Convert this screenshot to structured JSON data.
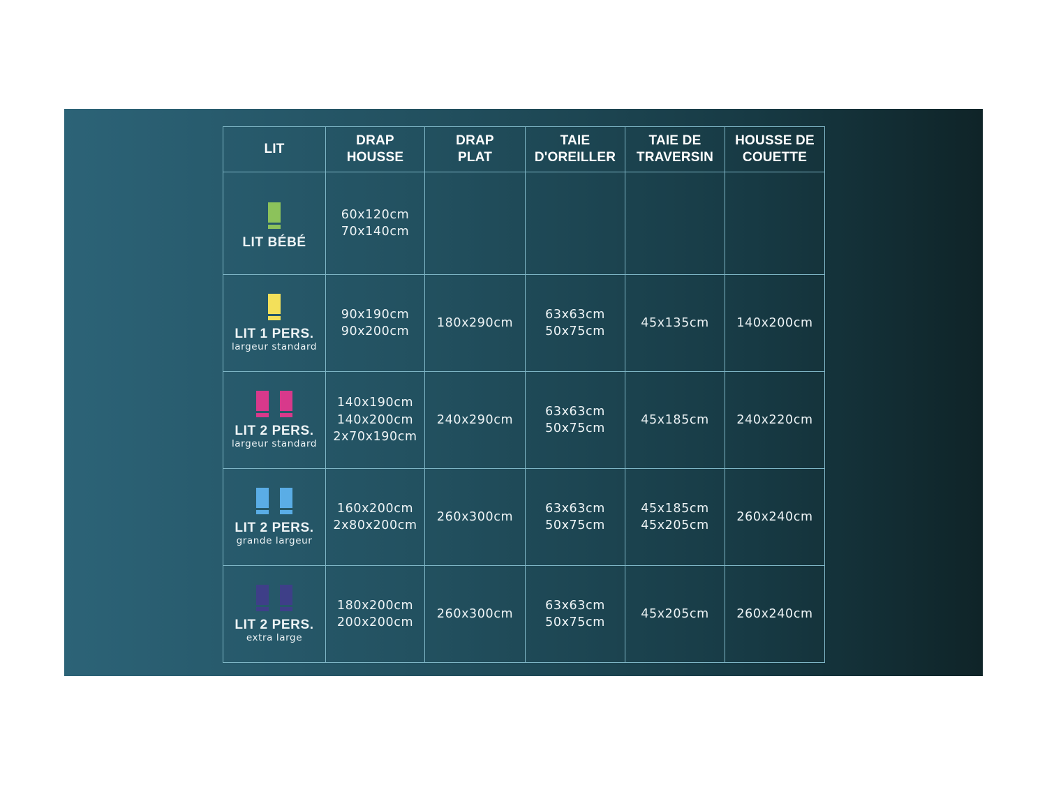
{
  "headers": [
    [
      "LIT"
    ],
    [
      "DRAP",
      "HOUSSE"
    ],
    [
      "DRAP",
      "PLAT"
    ],
    [
      "TAIE",
      "D'OREILLER"
    ],
    [
      "TAIE DE",
      "TRAVERSIN"
    ],
    [
      "HOUSSE DE",
      "COUETTE"
    ]
  ],
  "rows": [
    {
      "name": "LIT BÉBÉ",
      "sub": "",
      "icon_color": "#8cc25b",
      "icon_count": 1,
      "cells": [
        [
          "60x120cm",
          "70x140cm"
        ],
        [],
        [],
        [],
        []
      ]
    },
    {
      "name": "LIT 1 PERS.",
      "sub": "largeur standard",
      "icon_color": "#f3e05a",
      "icon_count": 1,
      "cells": [
        [
          "90x190cm",
          "90x200cm"
        ],
        [
          "180x290cm"
        ],
        [
          "63x63cm",
          "50x75cm"
        ],
        [
          "45x135cm"
        ],
        [
          "140x200cm"
        ]
      ]
    },
    {
      "name": "LIT 2 PERS.",
      "sub": "largeur standard",
      "icon_color": "#d8398b",
      "icon_count": 2,
      "cells": [
        [
          "140x190cm",
          "140x200cm",
          "2x70x190cm"
        ],
        [
          "240x290cm"
        ],
        [
          "63x63cm",
          "50x75cm"
        ],
        [
          "45x185cm"
        ],
        [
          "240x220cm"
        ]
      ]
    },
    {
      "name": "LIT 2 PERS.",
      "sub": "grande largeur",
      "icon_color": "#5aade6",
      "icon_count": 2,
      "cells": [
        [
          "160x200cm",
          "2x80x200cm"
        ],
        [
          "260x300cm"
        ],
        [
          "63x63cm",
          "50x75cm"
        ],
        [
          "45x185cm",
          "45x205cm"
        ],
        [
          "260x240cm"
        ]
      ]
    },
    {
      "name": "LIT 2 PERS.",
      "sub": "extra large",
      "icon_color": "#3e3f88",
      "icon_count": 2,
      "cells": [
        [
          "180x200cm",
          "200x200cm"
        ],
        [
          "260x300cm"
        ],
        [
          "63x63cm",
          "50x75cm"
        ],
        [
          "45x205cm"
        ],
        [
          "260x240cm"
        ]
      ]
    }
  ]
}
